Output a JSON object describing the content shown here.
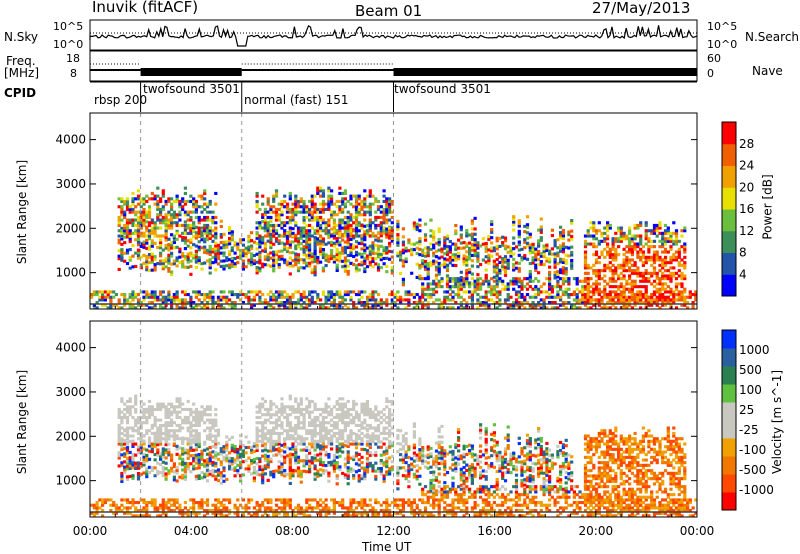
{
  "header": {
    "station": "Inuvik (fitACF)",
    "beam": "Beam 01",
    "date": "27/May/2013"
  },
  "top_panels": {
    "nsky_label": "N.Sky",
    "nsearch_label": "N.Search",
    "freq_label_1": "Freq.",
    "freq_label_2": "[MHz]",
    "nave_label": "Nave",
    "cpid_label": "CPID",
    "nsky_ticks": [
      "10^5",
      "10^0"
    ],
    "nsearch_ticks": [
      "10^5",
      "10^0"
    ],
    "freq_ticks": [
      "18",
      "8"
    ],
    "nave_ticks": [
      "60",
      "0"
    ],
    "cpid_segments": [
      {
        "label": "rbsp 200",
        "start_hour": 0,
        "end_hour": 2
      },
      {
        "label": "twofsound 3501",
        "start_hour": 2,
        "end_hour": 6
      },
      {
        "label": "normal (fast) 151",
        "start_hour": 6,
        "end_hour": 12
      },
      {
        "label": "twofsound 3501",
        "start_hour": 12,
        "end_hour": 24
      }
    ]
  },
  "colors": {
    "power_scale": [
      "#0000ff",
      "#2255aa",
      "#3d8f5a",
      "#6bbf3c",
      "#e8e000",
      "#f0a000",
      "#f06000",
      "#ff0000"
    ],
    "velocity_scale": [
      "#ff0000",
      "#ff4800",
      "#f07800",
      "#f0a000",
      "#c8c8c0",
      "#c8c8c0",
      "#60c040",
      "#2a8050",
      "#2a60a0",
      "#0030ff"
    ]
  },
  "chart_data": [
    {
      "type": "heatmap",
      "name": "power",
      "ylabel": "Slant Range [km]",
      "x_range_hours": [
        0,
        24
      ],
      "ylim": [
        180,
        4600
      ],
      "yticks": [
        1000,
        2000,
        3000,
        4000
      ],
      "colorbar": {
        "label": "Power [dB]",
        "ticks": [
          4,
          8,
          12,
          16,
          20,
          24,
          28
        ],
        "range": [
          0,
          30
        ]
      }
    },
    {
      "type": "heatmap",
      "name": "velocity",
      "ylabel": "Slant Range [km]",
      "xlabel": "Time UT",
      "x_range_hours": [
        0,
        24
      ],
      "xticks": [
        "00:00",
        "04:00",
        "08:00",
        "12:00",
        "16:00",
        "20:00",
        "00:00"
      ],
      "ylim": [
        180,
        4600
      ],
      "yticks": [
        1000,
        2000,
        3000,
        4000
      ],
      "colorbar": {
        "label": "Velocity [m s^-1]",
        "ticks": [
          1000,
          500,
          100,
          25,
          -25,
          -100,
          -500,
          -1000
        ]
      }
    }
  ]
}
